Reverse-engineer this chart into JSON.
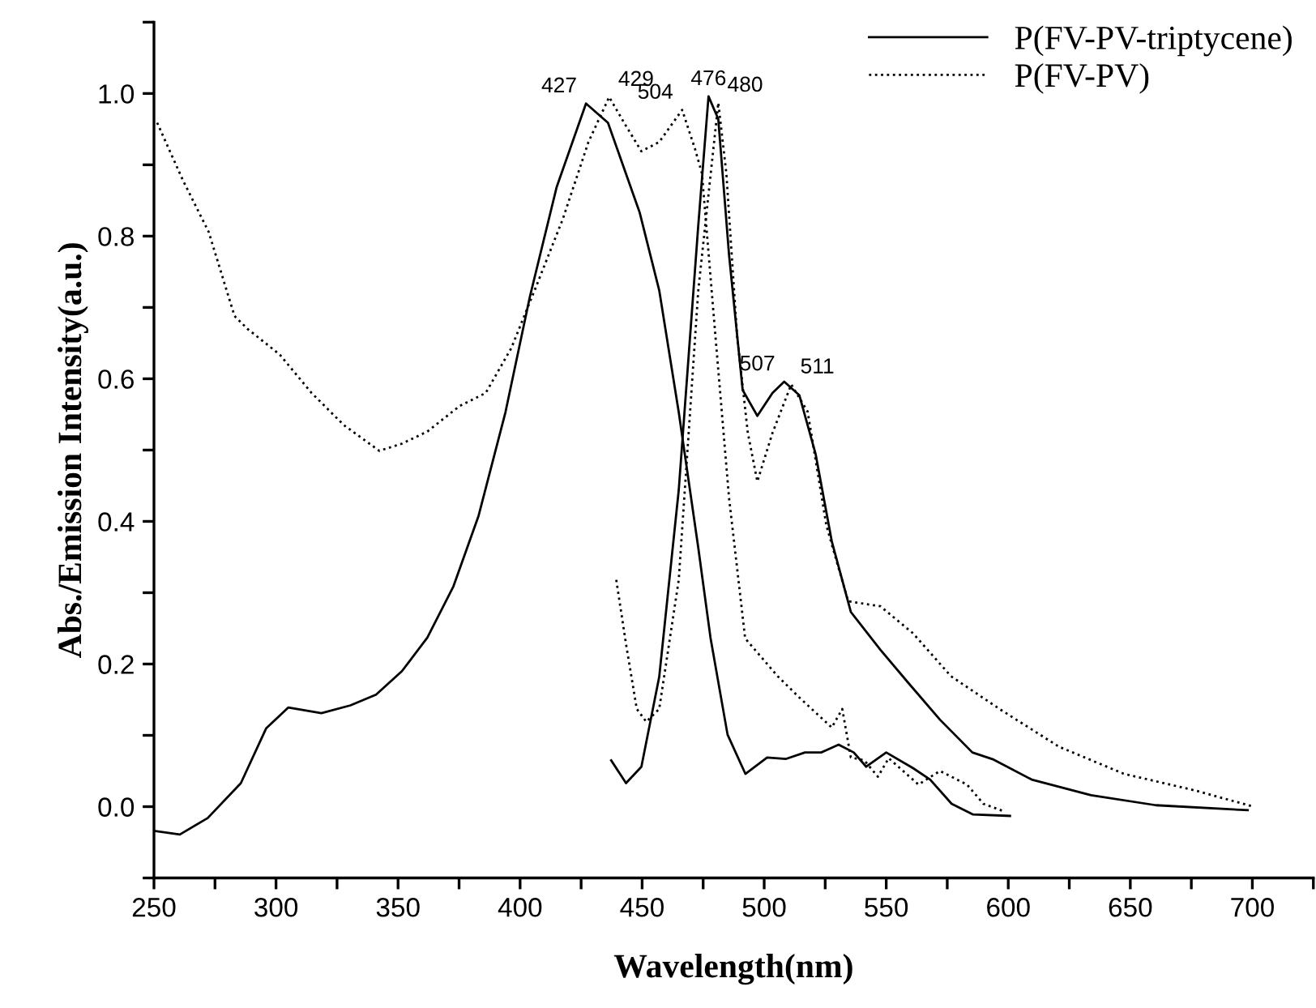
{
  "chart_data": {
    "type": "line",
    "xlabel": "Wavelength(nm)",
    "ylabel": "Abs./Emission Intensity(a.u.)",
    "xlim": [
      250,
      725
    ],
    "ylim": [
      -0.1,
      1.1
    ],
    "xticks": [
      250,
      {
        "value": 275,
        "label": null
      },
      300,
      {
        "value": 325,
        "label": null
      },
      350,
      {
        "value": 375,
        "label": null
      },
      400,
      {
        "value": 425,
        "label": null
      },
      450,
      {
        "value": 475,
        "label": null
      },
      500,
      {
        "value": 525,
        "label": null
      },
      550,
      {
        "value": 575,
        "label": null
      },
      600,
      {
        "value": 625,
        "label": null
      },
      650,
      {
        "value": 675,
        "label": null
      },
      700,
      {
        "value": 725,
        "label": null
      }
    ],
    "yticks": [
      {
        "value": -0.1,
        "label": null
      },
      {
        "value": 0,
        "label": "0.0"
      },
      {
        "value": 0.1,
        "label": null
      },
      0.2,
      {
        "value": 0.3,
        "label": null
      },
      0.4,
      {
        "value": 0.5,
        "label": null
      },
      0.6,
      {
        "value": 0.7,
        "label": null
      },
      0.8,
      {
        "value": 0.9,
        "label": null
      },
      {
        "value": 1,
        "label": "1.0"
      },
      {
        "value": 1.1,
        "label": null
      }
    ],
    "grid": false,
    "legend": "top right",
    "marker": "none",
    "series": [
      {
        "name": "P(FV-PV-triptycene)",
        "color": "#000000",
        "line_style": "solid",
        "x": [
          250,
          260.6,
          272,
          285.6,
          296,
          305,
          318.6,
          330.5,
          341,
          351.6,
          362,
          372.7,
          383,
          394,
          404,
          415,
          427,
          436,
          449,
          457,
          465,
          473,
          478,
          485,
          492.3,
          501.2,
          509,
          516.7,
          523.4,
          530.5,
          536.7,
          541.8,
          550,
          561,
          568,
          576.8,
          585.6,
          600.7
        ],
        "values": [
          -0.034,
          -0.039,
          -0.016,
          0.033,
          0.11,
          0.139,
          0.131,
          0.142,
          0.157,
          0.19,
          0.237,
          0.309,
          0.408,
          0.553,
          0.715,
          0.869,
          0.986,
          0.959,
          0.833,
          0.724,
          0.553,
          0.363,
          0.237,
          0.101,
          0.046,
          0.069,
          0.067,
          0.076,
          0.076,
          0.087,
          0.076,
          0.056,
          0.076,
          0.054,
          0.038,
          0.004,
          -0.011,
          -0.013
        ]
      },
      {
        "name": "P(FV-PV)",
        "color": "#000000",
        "line_style": "dotted",
        "x": [
          251.3,
          261.9,
          272.4,
          283,
          288.3,
          301.5,
          314.6,
          327.8,
          342.3,
          351.6,
          362,
          375.3,
          385.9,
          396.4,
          407,
          417.5,
          428,
          436.5,
          442.6,
          449.7,
          457,
          466.4,
          471.6,
          474.5,
          480,
          485.6,
          492.2,
          505.5,
          514.4,
          527.7,
          532,
          535.5,
          541,
          546.6,
          551,
          563.2,
          572,
          583.1,
          589.8,
          598.6
        ],
        "values": [
          0.959,
          0.878,
          0.806,
          0.688,
          0.67,
          0.634,
          0.58,
          0.535,
          0.499,
          0.509,
          0.526,
          0.562,
          0.58,
          0.643,
          0.733,
          0.824,
          0.932,
          0.995,
          0.959,
          0.919,
          0.932,
          0.977,
          0.923,
          0.888,
          0.661,
          0.433,
          0.236,
          0.183,
          0.153,
          0.111,
          0.137,
          0.069,
          0.065,
          0.042,
          0.068,
          0.031,
          0.05,
          0.031,
          0.004,
          -0.007
        ]
      },
      {
        "color": "#000000",
        "line_style": "solid",
        "x": [
          437.3,
          443.4,
          449.7,
          457,
          465,
          473,
          477.2,
          481.2,
          485.6,
          491.2,
          497.2,
          503.4,
          508.2,
          514.4,
          521.1,
          527.7,
          535.5,
          547.6,
          558.7,
          572,
          585.3,
          594,
          609.6,
          633.9,
          660.5,
          698.1
        ],
        "values": [
          0.065,
          0.033,
          0.056,
          0.182,
          0.444,
          0.815,
          0.996,
          0.964,
          0.774,
          0.584,
          0.548,
          0.58,
          0.596,
          0.577,
          0.494,
          0.372,
          0.273,
          0.22,
          0.175,
          0.122,
          0.076,
          0.066,
          0.038,
          0.016,
          0.002,
          -0.005
        ]
      },
      {
        "color": "#000000",
        "line_style": "dotted",
        "x": [
          439.4,
          443.4,
          447.8,
          451.7,
          457,
          465,
          473,
          481.2,
          484.5,
          488.9,
          493.3,
          497.2,
          503.4,
          511.1,
          517.8,
          525.5,
          534.4,
          547.6,
          561,
          576.5,
          596.4,
          620.8,
          647.4,
          676.2,
          700.5
        ],
        "values": [
          0.318,
          0.228,
          0.137,
          0.119,
          0.137,
          0.318,
          0.724,
          0.987,
          0.888,
          0.66,
          0.524,
          0.456,
          0.524,
          0.592,
          0.554,
          0.394,
          0.288,
          0.281,
          0.243,
          0.183,
          0.137,
          0.084,
          0.046,
          0.023,
          0.0
        ]
      }
    ],
    "annotations": [
      {
        "text": "427",
        "x": 427,
        "y": 0.986
      },
      {
        "text": "429",
        "x": 436.5,
        "y": 0.995
      },
      {
        "text": "476",
        "x": 477.2,
        "y": 0.996
      },
      {
        "text": "504",
        "x": 466.4,
        "y": 0.977
      },
      {
        "text": "480",
        "x": 481.2,
        "y": 0.987
      },
      {
        "text": "507",
        "x": 508.2,
        "y": 0.596
      },
      {
        "text": "511",
        "x": 511.1,
        "y": 0.592
      }
    ]
  }
}
